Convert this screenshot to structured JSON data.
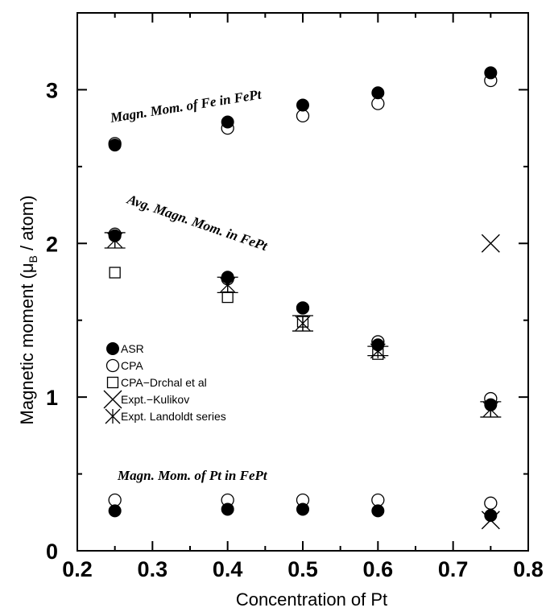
{
  "chart_data": {
    "type": "scatter",
    "xlabel": "Concentration of Pt",
    "ylabel_main": "Magnetic moment (μ",
    "ylabel_sub": "B",
    "ylabel_end": " / atom)",
    "xlim": [
      0.2,
      0.8
    ],
    "ylim": [
      0,
      3.5
    ],
    "x_ticks": [
      "0.2",
      "0.3",
      "0.4",
      "0.5",
      "0.6",
      "0.7",
      "0.8"
    ],
    "y_ticks": [
      "0",
      "1",
      "2",
      "3"
    ],
    "grid": false,
    "legend_position": "left-middle",
    "annotations": [
      "Magn. Mom. of Fe in FePt",
      "Avg. Magn. Mom. in FePt",
      "Magn. Mom. of Pt in FePt"
    ],
    "series": [
      {
        "name": "ASR",
        "marker": "filled-circle",
        "groups": [
          {
            "label": "Fe",
            "x": [
              0.25,
              0.4,
              0.5,
              0.6,
              0.75
            ],
            "y": [
              2.64,
              2.79,
              2.9,
              2.98,
              3.11
            ]
          },
          {
            "label": "Avg",
            "x": [
              0.25,
              0.4,
              0.5,
              0.6,
              0.75
            ],
            "y": [
              2.05,
              1.78,
              1.58,
              1.34,
              0.95
            ]
          },
          {
            "label": "Pt",
            "x": [
              0.25,
              0.4,
              0.5,
              0.6,
              0.75
            ],
            "y": [
              0.26,
              0.27,
              0.27,
              0.26,
              0.23
            ]
          }
        ]
      },
      {
        "name": "CPA",
        "marker": "open-circle",
        "groups": [
          {
            "label": "Fe",
            "x": [
              0.25,
              0.4,
              0.5,
              0.6,
              0.75
            ],
            "y": [
              2.65,
              2.75,
              2.83,
              2.91,
              3.06
            ]
          },
          {
            "label": "Avg",
            "x": [
              0.25,
              0.4,
              0.5,
              0.6,
              0.75
            ],
            "y": [
              2.06,
              1.77,
              1.58,
              1.36,
              0.99
            ]
          },
          {
            "label": "Pt",
            "x": [
              0.25,
              0.4,
              0.5,
              0.6,
              0.75
            ],
            "y": [
              0.33,
              0.33,
              0.33,
              0.33,
              0.31
            ]
          }
        ]
      },
      {
        "name": "CPA−Drchal et al",
        "marker": "open-square",
        "groups": [
          {
            "label": "Avg",
            "x": [
              0.25,
              0.4,
              0.5,
              0.6
            ],
            "y": [
              1.81,
              1.65,
              1.49,
              1.28
            ]
          }
        ]
      },
      {
        "name": "Expt.−Kulikov",
        "marker": "x",
        "groups": [
          {
            "label": "",
            "x": [
              0.75,
              0.75
            ],
            "y": [
              2.0,
              0.2
            ]
          }
        ]
      },
      {
        "name": "Expt. Landoldt series",
        "marker": "asterisk-errorbar",
        "groups": [
          {
            "label": "Avg",
            "x": [
              0.25,
              0.4,
              0.5,
              0.6,
              0.75
            ],
            "y": [
              2.02,
              1.73,
              1.48,
              1.3,
              0.92
            ],
            "err": [
              0.05,
              0.05,
              0.05,
              0.03,
              0.05
            ]
          }
        ]
      }
    ]
  }
}
